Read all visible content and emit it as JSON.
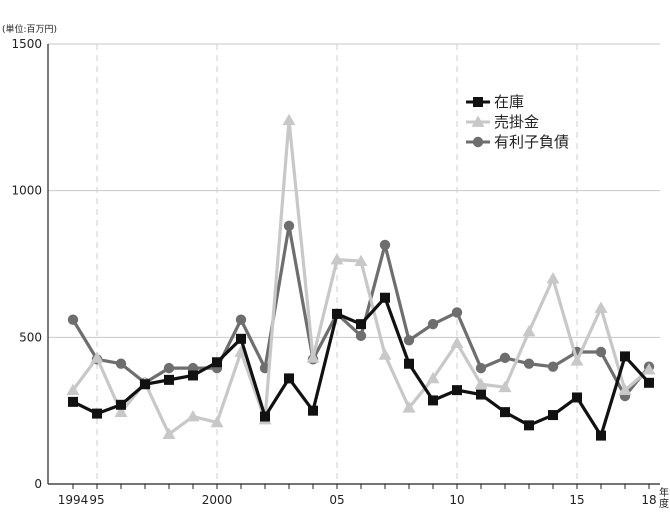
{
  "chart_data": {
    "type": "line",
    "unit_label": "(単位:百万円)",
    "x_suffix": "年度",
    "ylim": [
      0,
      1500
    ],
    "yticks": [
      0,
      500,
      1000,
      1500
    ],
    "x": [
      1994,
      1995,
      1996,
      1997,
      1998,
      1999,
      2000,
      2001,
      2002,
      2003,
      2004,
      2005,
      2006,
      2007,
      2008,
      2009,
      2010,
      2011,
      2012,
      2013,
      2014,
      2015,
      2016,
      2017,
      2018
    ],
    "xticks": [
      {
        "x": 1994,
        "label": "1994"
      },
      {
        "x": 1995,
        "label": "95"
      },
      {
        "x": 2000,
        "label": "2000"
      },
      {
        "x": 2005,
        "label": "05"
      },
      {
        "x": 2010,
        "label": "10"
      },
      {
        "x": 2015,
        "label": "15"
      },
      {
        "x": 2018,
        "label": "18"
      }
    ],
    "grid_x": [
      1995,
      2000,
      2005,
      2010,
      2015
    ],
    "legend_position": "top-right",
    "series": [
      {
        "name": "有利子負債",
        "color": "#6e6e6e",
        "marker": "circle",
        "values": [
          560,
          425,
          410,
          345,
          395,
          395,
          395,
          560,
          395,
          880,
          425,
          580,
          505,
          815,
          490,
          545,
          585,
          395,
          430,
          410,
          400,
          450,
          450,
          300,
          400
        ]
      },
      {
        "name": "売掛金",
        "color": "#c8c8c8",
        "marker": "triangle",
        "values": [
          320,
          430,
          245,
          345,
          170,
          230,
          210,
          450,
          220,
          1240,
          430,
          765,
          760,
          440,
          260,
          360,
          480,
          340,
          330,
          520,
          700,
          420,
          600,
          320,
          390
        ]
      },
      {
        "name": "在庫",
        "color": "#111111",
        "marker": "square",
        "values": [
          280,
          240,
          270,
          340,
          355,
          370,
          415,
          495,
          230,
          360,
          250,
          580,
          545,
          635,
          410,
          285,
          320,
          305,
          245,
          200,
          235,
          295,
          165,
          435,
          345
        ]
      }
    ],
    "legend_order": [
      "在庫",
      "売掛金",
      "有利子負債"
    ]
  }
}
